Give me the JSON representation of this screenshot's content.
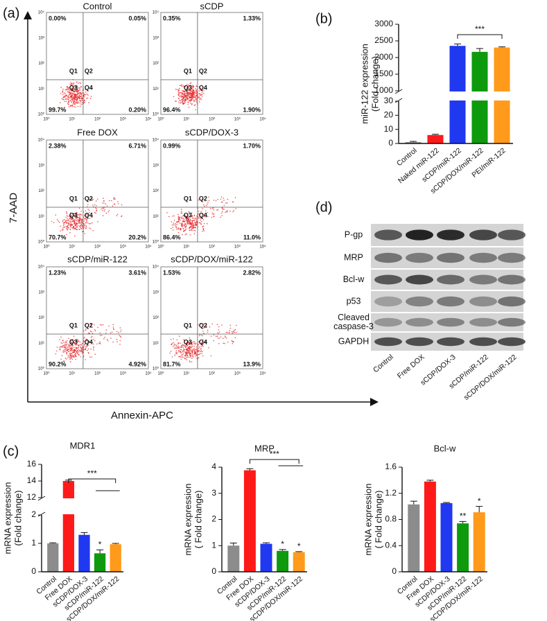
{
  "flow_cytometry": {
    "panel_label": "(a)",
    "y_label": "7-AAD",
    "x_label": "Annexin-APC",
    "tick_labels": [
      "10⁰",
      "10¹",
      "10²",
      "10³",
      "10⁴"
    ],
    "quadrant_labels": [
      "Q1",
      "Q2",
      "Q3",
      "Q4"
    ],
    "plots": [
      {
        "title": "Control",
        "percentages": [
          "0.00%",
          "0.05%",
          "99.7%",
          "0.20%"
        ]
      },
      {
        "title": "sCDP",
        "percentages": [
          "0.35%",
          "1.33%",
          "96.4%",
          "1.90%"
        ]
      },
      {
        "title": "Free DOX",
        "percentages": [
          "2.38%",
          "6.71%",
          "70.7%",
          "20.2%"
        ]
      },
      {
        "title": "sCDP/DOX-3",
        "percentages": [
          "0.99%",
          "1.70%",
          "86.4%",
          "11.0%"
        ]
      },
      {
        "title": "sCDP/miR-122",
        "percentages": [
          "1.23%",
          "3.61%",
          "90.2%",
          "4.92%"
        ]
      },
      {
        "title": "sCDP/DOX/miR-122",
        "percentages": [
          "1.53%",
          "2.82%",
          "81.7%",
          "13.9%"
        ]
      }
    ]
  },
  "chart_data": [
    {
      "type": "bar",
      "panel_label": "(b)",
      "y_label": [
        "miR-122 expression",
        "(Fold change)"
      ],
      "categories": [
        "Control",
        "Naked miR-122",
        "sCDP/miR-122",
        "sCDP/DOX/miR-122",
        "PEI/miR-122"
      ],
      "values": [
        1,
        6,
        2350,
        2170,
        2300
      ],
      "errors": [
        0.5,
        0.5,
        60,
        100,
        20
      ],
      "colors": [
        "#8c8c8c",
        "#ff1a1a",
        "#2038f0",
        "#0d9a0d",
        "#ff9a1a"
      ],
      "ylim": [
        0,
        3000
      ],
      "y_break": [
        30,
        1000
      ],
      "yticks": [
        0,
        10,
        20,
        30,
        1000,
        1500,
        2000,
        2500,
        3000
      ],
      "significance": "***"
    },
    {
      "type": "bar",
      "panel_label": "(c)",
      "title": "MDR1",
      "y_label": [
        "mRNA expression",
        "(Fold change)"
      ],
      "categories": [
        "Control",
        "Free DOX",
        "sCDP/DOX-3",
        "sCDP/miR-122",
        "sCDP/DOX/miR-122"
      ],
      "values": [
        1.0,
        14.0,
        1.3,
        0.65,
        0.97
      ],
      "errors": [
        0.02,
        0.1,
        0.08,
        0.12,
        0.03
      ],
      "colors": [
        "#8c8c8c",
        "#ff1a1a",
        "#2038f0",
        "#0d9a0d",
        "#ff9a1a"
      ],
      "ylim": [
        0,
        16
      ],
      "y_break": [
        2,
        12
      ],
      "yticks": [
        0,
        1,
        2,
        12,
        14,
        16
      ],
      "bar_annotations": [
        null,
        null,
        null,
        "*",
        null
      ],
      "significance": "***"
    },
    {
      "type": "bar",
      "title": "MRP",
      "y_label": [
        "mRNA expression",
        "( Fold change)"
      ],
      "categories": [
        "Control",
        "Free DOX",
        "sCDP/DOX-3",
        "sCDP/miR-122",
        "sCDP/DOX/miR-122"
      ],
      "values": [
        1.0,
        3.88,
        1.07,
        0.8,
        0.75
      ],
      "errors": [
        0.1,
        0.06,
        0.04,
        0.05,
        0.02
      ],
      "colors": [
        "#8c8c8c",
        "#ff1a1a",
        "#2038f0",
        "#0d9a0d",
        "#ff9a1a"
      ],
      "ylim": [
        0,
        4
      ],
      "yticks": [
        0,
        1,
        2,
        3,
        4
      ],
      "bar_annotations": [
        null,
        null,
        null,
        "*",
        "*"
      ],
      "significance": "***"
    },
    {
      "type": "bar",
      "title": "Bcl-w",
      "y_label": [
        "mRNA expression",
        "( Fold change)"
      ],
      "categories": [
        "Control",
        "Free DOX",
        "sCDP/DOX-3",
        "sCDP/miR-122",
        "sCDP/DOX/miR-122"
      ],
      "values": [
        1.03,
        1.38,
        1.05,
        0.74,
        0.91
      ],
      "errors": [
        0.05,
        0.02,
        0.01,
        0.03,
        0.09
      ],
      "colors": [
        "#8c8c8c",
        "#ff1a1a",
        "#2038f0",
        "#0d9a0d",
        "#ff9a1a"
      ],
      "ylim": [
        0,
        1.6
      ],
      "yticks": [
        0,
        0.4,
        0.8,
        1.2,
        1.6
      ],
      "bar_annotations": [
        null,
        null,
        null,
        "**",
        "*"
      ]
    }
  ],
  "western_blot": {
    "panel_label": "(d)",
    "proteins": [
      [
        "P-gp"
      ],
      [
        "MRP"
      ],
      [
        "Bcl-w"
      ],
      [
        "p53"
      ],
      [
        "Cleaved",
        "caspase-3"
      ],
      [
        "GAPDH"
      ]
    ],
    "lanes": [
      "Control",
      "Free DOX",
      "sCDP/DOX-3",
      "sCDP/miR-122",
      "sCDP/DOX/miR-122"
    ]
  }
}
